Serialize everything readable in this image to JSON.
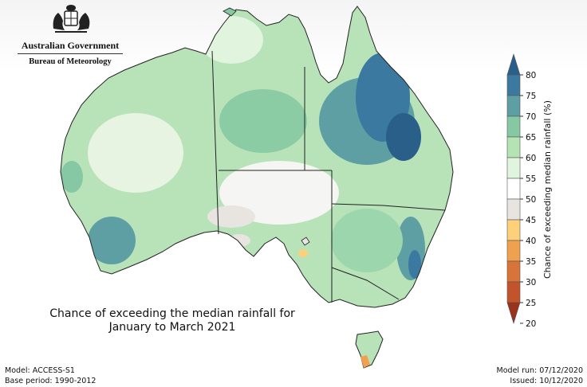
{
  "header": {
    "government": "Australian Government",
    "bureau": "Bureau of Meteorology"
  },
  "map": {
    "title_line1": "Chance of exceeding the median rainfall for",
    "title_line2": "January to March 2021"
  },
  "legend": {
    "title": "Chance of exceeding median rainfall (%)",
    "ticks": [
      "80",
      "75",
      "70",
      "65",
      "60",
      "55",
      "50",
      "45",
      "40",
      "35",
      "30",
      "25",
      "20"
    ],
    "colors": [
      "#2a5f8a",
      "#3b79a0",
      "#5d9fa3",
      "#86c8a4",
      "#b5e3b4",
      "#e1f4dd",
      "#ffffff",
      "#e8e4df",
      "#fdd07a",
      "#f0a14f",
      "#d6743a",
      "#c2532a",
      "#9a3220"
    ]
  },
  "footer": {
    "model": "Model: ACCESS-S1",
    "base_period": "Base period: 1990-2012",
    "model_run": "Model run: 07/12/2020",
    "issued": "Issued: 10/12/2020"
  }
}
